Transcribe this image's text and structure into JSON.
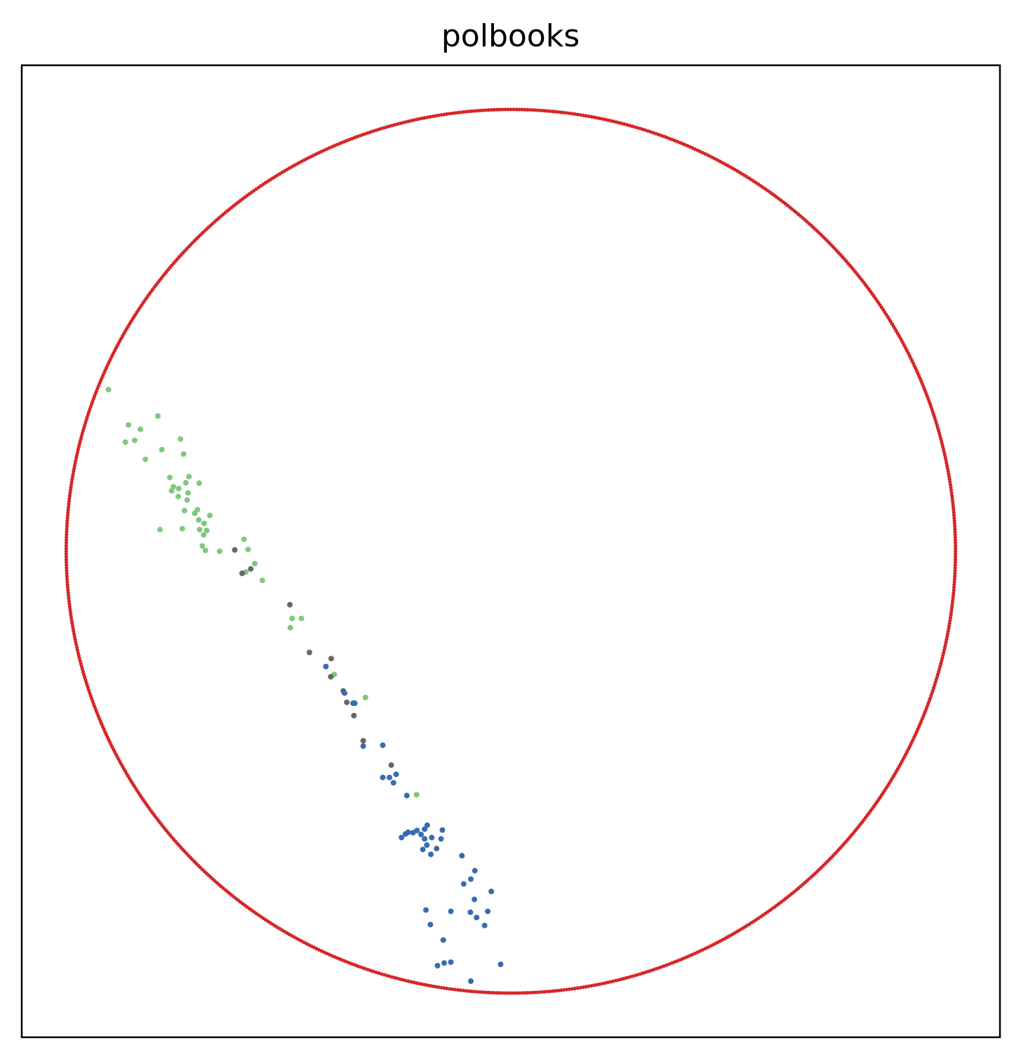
{
  "chart_data": {
    "type": "scatter",
    "title": "polbooks",
    "xlabel": "",
    "ylabel": "",
    "xlim": [
      -1.1,
      1.1
    ],
    "ylim": [
      -1.1,
      1.1
    ],
    "grid": false,
    "axis_ticks": false,
    "boundary_circle": {
      "radius": 1.0,
      "color": "#d62728",
      "points": 1000
    },
    "series": [
      {
        "color": "#7fc97f",
        "points": [
          [
            -0.905,
            0.366
          ],
          [
            -0.867,
            0.247
          ],
          [
            -0.86,
            0.286
          ],
          [
            -0.833,
            0.276
          ],
          [
            -0.846,
            0.251
          ],
          [
            -0.822,
            0.208
          ],
          [
            -0.794,
            0.306
          ],
          [
            -0.785,
            0.23
          ],
          [
            -0.743,
            0.254
          ],
          [
            -0.736,
            0.22
          ],
          [
            -0.767,
            0.167
          ],
          [
            -0.763,
            0.137
          ],
          [
            -0.759,
            0.146
          ],
          [
            -0.748,
            0.124
          ],
          [
            -0.747,
            0.142
          ],
          [
            -0.726,
            0.132
          ],
          [
            -0.731,
            0.155
          ],
          [
            -0.728,
            0.116
          ],
          [
            -0.724,
            0.169
          ],
          [
            -0.701,
            0.154
          ],
          [
            -0.705,
            0.094
          ],
          [
            -0.789,
            0.049
          ],
          [
            -0.739,
            0.051
          ],
          [
            -0.734,
            0.092
          ],
          [
            -0.711,
            0.086
          ],
          [
            -0.7,
            0.049
          ],
          [
            -0.702,
            0.071
          ],
          [
            -0.69,
            0.063
          ],
          [
            -0.677,
            0.081
          ],
          [
            -0.691,
            0.037
          ],
          [
            -0.684,
            0.047
          ],
          [
            -0.694,
            0.012
          ],
          [
            -0.687,
            0.002
          ],
          [
            -0.655,
            0.0
          ],
          [
            -0.6,
            0.027
          ],
          [
            -0.591,
            0.004
          ],
          [
            -0.576,
            -0.028
          ],
          [
            -0.605,
            -0.05
          ],
          [
            -0.596,
            -0.047
          ],
          [
            -0.559,
            -0.066
          ],
          [
            -0.471,
            -0.152
          ],
          [
            -0.492,
            -0.152
          ],
          [
            -0.496,
            -0.173
          ],
          [
            -0.397,
            -0.279
          ],
          [
            -0.327,
            -0.331
          ],
          [
            -0.212,
            -0.551
          ]
        ]
      },
      {
        "color": "#666666",
        "points": [
          [
            -0.621,
            0.003
          ],
          [
            -0.604,
            -0.05
          ],
          [
            -0.585,
            -0.04
          ],
          [
            -0.497,
            -0.121
          ],
          [
            -0.453,
            -0.229
          ],
          [
            -0.404,
            -0.243
          ],
          [
            -0.405,
            -0.284
          ],
          [
            -0.377,
            -0.316
          ],
          [
            -0.369,
            -0.342
          ],
          [
            -0.353,
            -0.372
          ],
          [
            -0.332,
            -0.429
          ],
          [
            -0.269,
            -0.484
          ]
        ]
      },
      {
        "color": "#386cb0",
        "points": [
          [
            -0.416,
            -0.261
          ],
          [
            -0.374,
            -0.321
          ],
          [
            -0.351,
            -0.344
          ],
          [
            -0.355,
            -0.344
          ],
          [
            -0.332,
            -0.441
          ],
          [
            -0.288,
            -0.439
          ],
          [
            -0.288,
            -0.512
          ],
          [
            -0.273,
            -0.512
          ],
          [
            -0.258,
            -0.505
          ],
          [
            -0.264,
            -0.524
          ],
          [
            -0.234,
            -0.553
          ],
          [
            -0.246,
            -0.648
          ],
          [
            -0.237,
            -0.64
          ],
          [
            -0.231,
            -0.636
          ],
          [
            -0.22,
            -0.637
          ],
          [
            -0.211,
            -0.632
          ],
          [
            -0.202,
            -0.641
          ],
          [
            -0.194,
            -0.629
          ],
          [
            -0.188,
            -0.62
          ],
          [
            -0.189,
            -0.665
          ],
          [
            -0.198,
            -0.675
          ],
          [
            -0.194,
            -0.651
          ],
          [
            -0.178,
            -0.648
          ],
          [
            -0.167,
            -0.673
          ],
          [
            -0.18,
            -0.686
          ],
          [
            -0.157,
            -0.651
          ],
          [
            -0.154,
            -0.631
          ],
          [
            -0.11,
            -0.689
          ],
          [
            -0.09,
            -0.742
          ],
          [
            -0.106,
            -0.753
          ],
          [
            -0.081,
            -0.723
          ],
          [
            -0.044,
            -0.77
          ],
          [
            -0.052,
            -0.815
          ],
          [
            -0.082,
            -0.788
          ],
          [
            -0.191,
            -0.812
          ],
          [
            -0.181,
            -0.845
          ],
          [
            -0.135,
            -0.815
          ],
          [
            -0.091,
            -0.817
          ],
          [
            -0.077,
            -0.829
          ],
          [
            -0.059,
            -0.847
          ],
          [
            -0.152,
            -0.88
          ],
          [
            -0.165,
            -0.938
          ],
          [
            -0.15,
            -0.932
          ],
          [
            -0.135,
            -0.93
          ],
          [
            -0.09,
            -0.973
          ],
          [
            -0.023,
            -0.935
          ]
        ]
      }
    ]
  }
}
